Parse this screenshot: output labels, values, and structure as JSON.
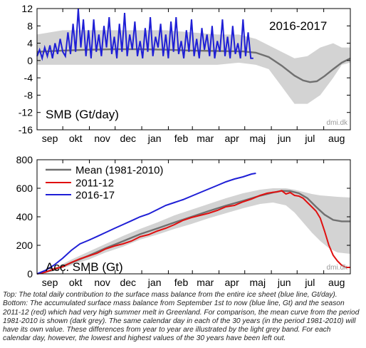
{
  "caption_lines": [
    "Top: The total daily contribution to the surface mass balance from the entire ice sheet (blue line, Gt/day).",
    "Bottom: The accumulated surface mass balance from September 1st to now (blue line, Gt) and the season",
    "2011-12 (red) which had very high summer melt in Greenland. For comparison, the mean curve from the period",
    "1981-2010 is shown (dark grey). The same calendar day in each of the 30 years (in the period 1981-2010) will",
    "have its own value. These differences from year to year are illustrated by the light grey band. For each",
    "calendar day, however, the lowest and highest values of the 30 years have been left out."
  ],
  "colors": {
    "band": "#d3d3d3",
    "mean": "#707070",
    "season_2016_17": "#1f1fd6",
    "season_2011_12": "#e01010"
  },
  "chart_data": [
    {
      "type": "line",
      "title": "2016-2017",
      "ylabel": "SMB (Gt/day)",
      "watermark": "dmi.dk",
      "xlim": [
        0,
        365
      ],
      "ylim": [
        -16,
        12
      ],
      "yticks": [
        12,
        8,
        4,
        0,
        -4,
        -8,
        -12,
        -16
      ],
      "xtick_labels": [
        "sep",
        "okt",
        "nov",
        "dec",
        "jan",
        "feb",
        "mar",
        "apr",
        "maj",
        "jun",
        "jul",
        "aug"
      ],
      "xtick_positions": [
        15,
        45,
        76,
        106,
        137,
        168,
        196,
        227,
        257,
        288,
        318,
        349
      ],
      "grid": false,
      "band": {
        "x": [
          0,
          30,
          60,
          90,
          120,
          150,
          180,
          210,
          235,
          255,
          270,
          285,
          300,
          315,
          330,
          345,
          355,
          365
        ],
        "low": [
          -1,
          -1,
          -1,
          -1,
          -1,
          -1,
          -1,
          -1,
          -0.5,
          -1,
          -2,
          -6,
          -10,
          -10,
          -8,
          -4,
          -1,
          -0.5
        ],
        "high": [
          6,
          7,
          7,
          7,
          7,
          7,
          6.5,
          6,
          6,
          5,
          3.5,
          2,
          0.5,
          1,
          3,
          4,
          3,
          3
        ]
      },
      "mean": {
        "x": [
          0,
          30,
          60,
          90,
          120,
          150,
          180,
          210,
          240,
          255,
          270,
          285,
          300,
          310,
          318,
          326,
          335,
          345,
          355,
          365
        ],
        "y": [
          2.0,
          2.3,
          2.5,
          2.6,
          2.6,
          2.5,
          2.3,
          2.2,
          2.1,
          1.8,
          0.8,
          -1.2,
          -3.5,
          -4.6,
          -5.0,
          -4.8,
          -3.6,
          -2.0,
          -0.5,
          0.5
        ]
      },
      "series": [
        {
          "name": "2016-17",
          "x": [
            0,
            3,
            6,
            9,
            12,
            15,
            18,
            21,
            24,
            27,
            30,
            33,
            36,
            39,
            42,
            45,
            48,
            51,
            54,
            57,
            60,
            63,
            66,
            69,
            72,
            75,
            78,
            81,
            84,
            87,
            90,
            93,
            96,
            99,
            102,
            105,
            108,
            111,
            114,
            117,
            120,
            123,
            126,
            129,
            132,
            135,
            138,
            141,
            144,
            147,
            150,
            153,
            156,
            159,
            162,
            165,
            168,
            171,
            174,
            177,
            180,
            183,
            186,
            189,
            192,
            195,
            198,
            201,
            204,
            207,
            210,
            213,
            216,
            219,
            222,
            225,
            228,
            231,
            234,
            237,
            240,
            243,
            246,
            249,
            252
          ],
          "y": [
            1.0,
            2.5,
            0.5,
            3.0,
            1.0,
            3.5,
            0.5,
            4.0,
            1.5,
            5.0,
            2.0,
            1.0,
            6.5,
            1.5,
            8.5,
            2.0,
            12.0,
            3.0,
            9.5,
            1.0,
            7.0,
            0.5,
            9.5,
            2.0,
            6.0,
            1.0,
            8.0,
            3.0,
            10.0,
            1.5,
            5.5,
            0.5,
            8.5,
            2.0,
            11.0,
            1.0,
            6.0,
            2.5,
            9.0,
            1.0,
            4.5,
            0.5,
            7.5,
            2.0,
            10.0,
            1.0,
            5.5,
            3.0,
            8.5,
            1.0,
            6.0,
            0.5,
            9.0,
            2.0,
            10.0,
            1.5,
            4.5,
            0.5,
            7.0,
            2.0,
            9.5,
            1.0,
            5.0,
            0.5,
            7.5,
            2.5,
            6.0,
            1.0,
            8.0,
            0.5,
            4.5,
            2.0,
            9.5,
            1.0,
            5.5,
            0.5,
            8.0,
            1.5,
            4.0,
            0.5,
            9.5,
            1.0,
            6.5,
            0.5,
            0.5
          ]
        }
      ]
    },
    {
      "type": "line",
      "ylabel": "Acc. SMB (Gt)",
      "watermark": "dmi.dk",
      "xlim": [
        0,
        365
      ],
      "ylim": [
        0,
        800
      ],
      "yticks": [
        800,
        600,
        400,
        200,
        0
      ],
      "xtick_labels": [
        "sep",
        "okt",
        "nov",
        "dec",
        "jan",
        "feb",
        "mar",
        "apr",
        "maj",
        "jun",
        "jul",
        "aug"
      ],
      "xtick_positions": [
        15,
        45,
        76,
        106,
        137,
        168,
        196,
        227,
        257,
        288,
        318,
        349
      ],
      "grid": false,
      "legend_position": "top-left",
      "band": {
        "x": [
          0,
          20,
          40,
          60,
          80,
          100,
          120,
          140,
          160,
          180,
          200,
          220,
          240,
          260,
          275,
          290,
          300,
          310,
          320,
          330,
          340,
          350,
          365
        ],
        "low": [
          0,
          20,
          60,
          100,
          150,
          190,
          240,
          275,
          315,
          350,
          390,
          425,
          460,
          490,
          500,
          480,
          430,
          360,
          290,
          230,
          180,
          150,
          140
        ],
        "high": [
          0,
          40,
          100,
          155,
          210,
          265,
          315,
          360,
          410,
          450,
          490,
          530,
          565,
          590,
          600,
          600,
          590,
          575,
          560,
          550,
          545,
          540,
          535
        ]
      },
      "series": [
        {
          "name": "Mean (1981-2010)",
          "x": [
            0,
            20,
            40,
            60,
            80,
            100,
            120,
            140,
            160,
            180,
            200,
            220,
            240,
            260,
            275,
            285,
            295,
            305,
            315,
            325,
            335,
            345,
            355,
            365
          ],
          "y": [
            0,
            28,
            78,
            127,
            180,
            228,
            278,
            318,
            360,
            400,
            440,
            478,
            512,
            548,
            570,
            582,
            580,
            565,
            530,
            470,
            415,
            378,
            368,
            368
          ]
        },
        {
          "name": "2011-12",
          "x": [
            0,
            10,
            20,
            30,
            40,
            50,
            60,
            70,
            80,
            90,
            100,
            110,
            120,
            130,
            140,
            150,
            160,
            170,
            180,
            190,
            200,
            210,
            220,
            230,
            240,
            250,
            260,
            268,
            275,
            280,
            285,
            290,
            295,
            300,
            305,
            310,
            315,
            320,
            325,
            330,
            335,
            340,
            345,
            350,
            355,
            360,
            365
          ],
          "y": [
            0,
            12,
            35,
            50,
            80,
            105,
            125,
            145,
            175,
            195,
            210,
            230,
            260,
            275,
            300,
            320,
            345,
            375,
            395,
            410,
            425,
            445,
            470,
            480,
            505,
            525,
            550,
            565,
            572,
            575,
            583,
            560,
            570,
            550,
            545,
            530,
            500,
            470,
            440,
            390,
            300,
            200,
            130,
            90,
            60,
            45,
            45
          ]
        },
        {
          "name": "2016-17",
          "x": [
            0,
            10,
            20,
            30,
            40,
            50,
            60,
            70,
            80,
            90,
            100,
            110,
            120,
            130,
            140,
            150,
            160,
            170,
            180,
            190,
            200,
            210,
            220,
            230,
            240,
            250,
            255
          ],
          "y": [
            0,
            25,
            62,
            110,
            165,
            210,
            235,
            262,
            290,
            318,
            345,
            372,
            400,
            420,
            450,
            480,
            500,
            520,
            545,
            570,
            595,
            620,
            645,
            665,
            680,
            700,
            705
          ]
        }
      ]
    }
  ]
}
